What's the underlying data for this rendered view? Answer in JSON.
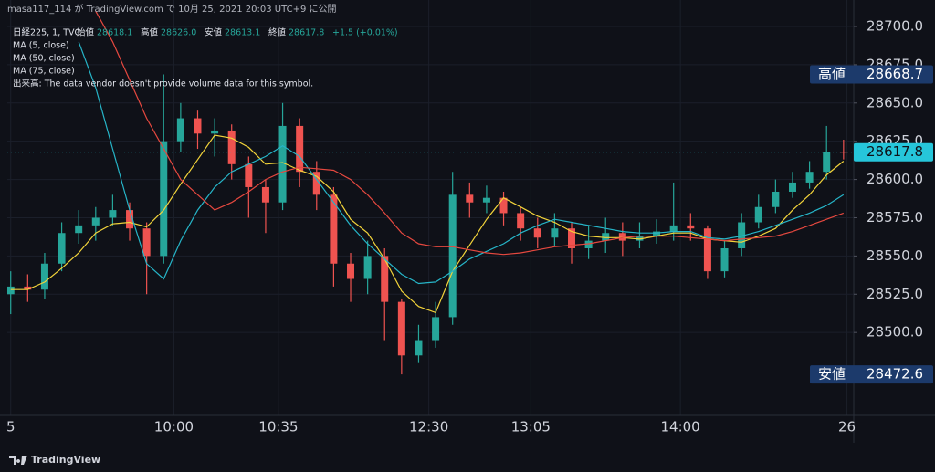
{
  "header": {
    "publisher": "masa117_114 が TradingView.com で 10月 25, 2021 20:03 UTC+9 に公開"
  },
  "footer": {
    "brand": "TradingView"
  },
  "chart_data": {
    "type": "candlestick",
    "symbol": "日経225, 1, TVC",
    "legend_ohlc": [
      {
        "label": "始値",
        "value": "28618.1"
      },
      {
        "label": "高値",
        "value": "28626.0"
      },
      {
        "label": "安値",
        "value": "28613.1"
      },
      {
        "label": "終値",
        "value": "28617.8"
      }
    ],
    "change": "+1.5 (+0.01%)",
    "volume_note": "出来高: The data vendor doesn't provide volume data for this symbol.",
    "up_color": "#26a69a",
    "down_color": "#ef5350",
    "grid": true,
    "open": [
      28525,
      28530,
      28528,
      28545,
      28565,
      28570,
      28575,
      28580,
      28568,
      28550,
      28625,
      28640,
      28630,
      28632,
      28610,
      28595,
      28585,
      28635,
      28605,
      28590,
      28545,
      28535,
      28550,
      28520,
      28485,
      28495,
      28510,
      28590,
      28585,
      28588,
      28578,
      28568,
      28562,
      28568,
      28555,
      28560,
      28565,
      28560,
      28563,
      28566,
      28570,
      28568,
      28540,
      28555,
      28572,
      28582,
      28592,
      28598,
      28605,
      28618.1
    ],
    "high": [
      28540,
      28538,
      28552,
      28572,
      28580,
      28582,
      28590,
      28585,
      28572,
      28668.7,
      28650,
      28645,
      28640,
      28636,
      28615,
      28600,
      28650,
      28640,
      28612,
      28595,
      28552,
      28560,
      28555,
      28522,
      28505,
      28520,
      28605,
      28598,
      28596,
      28592,
      28582,
      28575,
      28578,
      28572,
      28570,
      28575,
      28572,
      28572,
      28574,
      28598,
      28578,
      28570,
      28560,
      28578,
      28590,
      28600,
      28605,
      28612,
      28635,
      28626
    ],
    "low": [
      28512,
      28520,
      28522,
      28540,
      28558,
      28560,
      28570,
      28560,
      28525,
      28545,
      28618,
      28620,
      28615,
      28600,
      28575,
      28565,
      28580,
      28595,
      28580,
      28530,
      28520,
      28525,
      28495,
      28472.6,
      28480,
      28490,
      28505,
      28575,
      28578,
      28570,
      28560,
      28555,
      28556,
      28545,
      28548,
      28552,
      28550,
      28555,
      28558,
      28560,
      28560,
      28535,
      28536,
      28550,
      28568,
      28578,
      28588,
      28594,
      28600,
      28613.1
    ],
    "close": [
      28530,
      28528,
      28545,
      28565,
      28570,
      28575,
      28580,
      28568,
      28550,
      28625,
      28640,
      28630,
      28632,
      28610,
      28595,
      28585,
      28635,
      28605,
      28590,
      28545,
      28535,
      28550,
      28520,
      28485,
      28495,
      28510,
      28590,
      28585,
      28588,
      28578,
      28568,
      28562,
      28568,
      28555,
      28560,
      28565,
      28560,
      28563,
      28566,
      28570,
      28568,
      28540,
      28555,
      28572,
      28582,
      28592,
      28598,
      28605,
      28618.1,
      28617.8
    ],
    "series": [
      {
        "name": "MA (5, close)",
        "color": "#f2d33a",
        "values": [
          28528,
          28528,
          28533,
          28542,
          28552,
          28565,
          28571,
          28572,
          28569,
          28580,
          28597,
          28613,
          28629,
          28627,
          28621,
          28610,
          28611,
          28606,
          28602,
          28592,
          28574,
          28565,
          28548,
          28527,
          28517,
          28513,
          28540,
          28557,
          28574,
          28588,
          28582,
          28576,
          28572,
          28566,
          28563,
          28562,
          28562,
          28561,
          28563,
          28565,
          28565,
          28561,
          28560,
          28559,
          28563,
          28568,
          28580,
          28590,
          28603,
          28612
        ]
      },
      {
        "name": "MA (50, close)",
        "color": "#26b5c8",
        "values": [
          null,
          null,
          null,
          null,
          28690,
          28660,
          28620,
          28580,
          28545,
          28535,
          28560,
          28580,
          28595,
          28605,
          28610,
          28615,
          28622,
          28615,
          28600,
          28585,
          28570,
          28558,
          28548,
          28538,
          28532,
          28533,
          28540,
          28548,
          28553,
          28558,
          28565,
          28570,
          28574,
          28572,
          28570,
          28568,
          28566,
          28565,
          28565,
          28566,
          28566,
          28562,
          28561,
          28563,
          28566,
          28570,
          28574,
          28578,
          28583,
          28590
        ]
      },
      {
        "name": "MA (75, close)",
        "color": "#e5483f",
        "values": [
          null,
          null,
          null,
          null,
          null,
          28710,
          28690,
          28665,
          28640,
          28620,
          28600,
          28590,
          28580,
          28585,
          28592,
          28600,
          28605,
          28608,
          28607,
          28606,
          28600,
          28590,
          28578,
          28565,
          28558,
          28556,
          28556,
          28554,
          28552,
          28551,
          28552,
          28554,
          28556,
          28557,
          28558,
          28560,
          28562,
          28563,
          28563,
          28563,
          28562,
          28561,
          28560,
          28561,
          28562,
          28563,
          28566,
          28570,
          28574,
          28578
        ]
      }
    ],
    "xlim": [
      -0.2,
      49.6
    ],
    "xticks": [
      {
        "value": 0,
        "label": "5"
      },
      {
        "value": 9.6,
        "label": "10:00"
      },
      {
        "value": 15.75,
        "label": "10:35"
      },
      {
        "value": 24.6,
        "label": "12:30"
      },
      {
        "value": 30.6,
        "label": "13:05"
      },
      {
        "value": 39.4,
        "label": "14:00"
      },
      {
        "value": 49.2,
        "label": "26"
      }
    ],
    "ylim": [
      28445.8,
      28717.3
    ],
    "yticks": [
      {
        "value": 28500,
        "label": "28500.0"
      },
      {
        "value": 28525,
        "label": "28525.0"
      },
      {
        "value": 28550,
        "label": "28550.0"
      },
      {
        "value": 28575,
        "label": "28575.0"
      },
      {
        "value": 28600,
        "label": "28600.0"
      },
      {
        "value": 28625,
        "label": "28625.0"
      },
      {
        "value": 28650,
        "label": "28650.0"
      },
      {
        "value": 28675,
        "label": "28675.0"
      },
      {
        "value": 28700,
        "label": "28700.0"
      }
    ],
    "high_badge": {
      "label": "高値",
      "value": 28668.7
    },
    "low_badge": {
      "label": "安値",
      "value": 28472.6
    },
    "last_badge": {
      "value": 28617.8
    }
  }
}
